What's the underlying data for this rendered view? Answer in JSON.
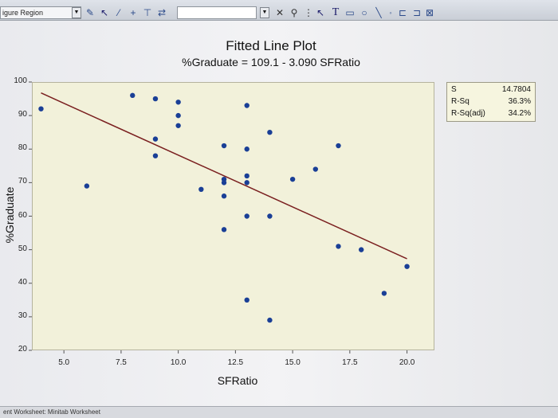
{
  "toolbar": {
    "region_label": "igure Region",
    "icons": [
      "brush-icon",
      "select-arrow-icon",
      "pen-icon",
      "plus-icon",
      "crosshair-icon",
      "flip-icon",
      "text-icon",
      "rectangle-icon",
      "ellipse-icon",
      "line-icon",
      "point-icon"
    ],
    "text_tool_glyph": "T"
  },
  "graph": {
    "title": "Fitted Line Plot",
    "subtitle": "%Graduate = 109.1 - 3.090 SFRatio"
  },
  "stats": [
    {
      "label": "S",
      "value": "14.7804"
    },
    {
      "label": "R-Sq",
      "value": "36.3%"
    },
    {
      "label": "R-Sq(adj)",
      "value": "34.2%"
    }
  ],
  "status_bar": {
    "text": "ent Worksheet: Minitab Worksheet"
  },
  "colors": {
    "plot_bg": "#f2f1da",
    "point": "#1a3f96",
    "fit_line": "#7a1f1f"
  },
  "chart_data": {
    "type": "scatter",
    "title": "Fitted Line Plot",
    "subtitle": "%Graduate = 109.1 - 3.090 SFRatio",
    "xlabel": "SFRatio",
    "ylabel": "%Graduate",
    "xlim": [
      3.6,
      21.2
    ],
    "ylim": [
      20,
      100
    ],
    "xticks": [
      "5.0",
      "7.5",
      "10.0",
      "12.5",
      "15.0",
      "17.5",
      "20.0"
    ],
    "yticks": [
      "20",
      "30",
      "40",
      "50",
      "60",
      "70",
      "80",
      "90",
      "100"
    ],
    "grid": false,
    "fit_line": {
      "intercept": 109.1,
      "slope": -3.09,
      "x_range": [
        4,
        20
      ]
    },
    "points": [
      {
        "x": 4.0,
        "y": 92
      },
      {
        "x": 6.0,
        "y": 69
      },
      {
        "x": 8.0,
        "y": 96
      },
      {
        "x": 9.0,
        "y": 95
      },
      {
        "x": 9.0,
        "y": 83
      },
      {
        "x": 9.0,
        "y": 78
      },
      {
        "x": 10.0,
        "y": 94
      },
      {
        "x": 10.0,
        "y": 90
      },
      {
        "x": 10.0,
        "y": 87
      },
      {
        "x": 11.0,
        "y": 68
      },
      {
        "x": 12.0,
        "y": 81
      },
      {
        "x": 12.0,
        "y": 71
      },
      {
        "x": 12.0,
        "y": 70
      },
      {
        "x": 12.0,
        "y": 66
      },
      {
        "x": 12.0,
        "y": 56
      },
      {
        "x": 13.0,
        "y": 93
      },
      {
        "x": 13.0,
        "y": 80
      },
      {
        "x": 13.0,
        "y": 72
      },
      {
        "x": 13.0,
        "y": 70
      },
      {
        "x": 13.0,
        "y": 60
      },
      {
        "x": 13.0,
        "y": 35
      },
      {
        "x": 14.0,
        "y": 85
      },
      {
        "x": 14.0,
        "y": 60
      },
      {
        "x": 14.0,
        "y": 29
      },
      {
        "x": 15.0,
        "y": 71
      },
      {
        "x": 16.0,
        "y": 74
      },
      {
        "x": 17.0,
        "y": 81
      },
      {
        "x": 17.0,
        "y": 51
      },
      {
        "x": 18.0,
        "y": 50
      },
      {
        "x": 19.0,
        "y": 37
      },
      {
        "x": 20.0,
        "y": 45
      }
    ]
  }
}
